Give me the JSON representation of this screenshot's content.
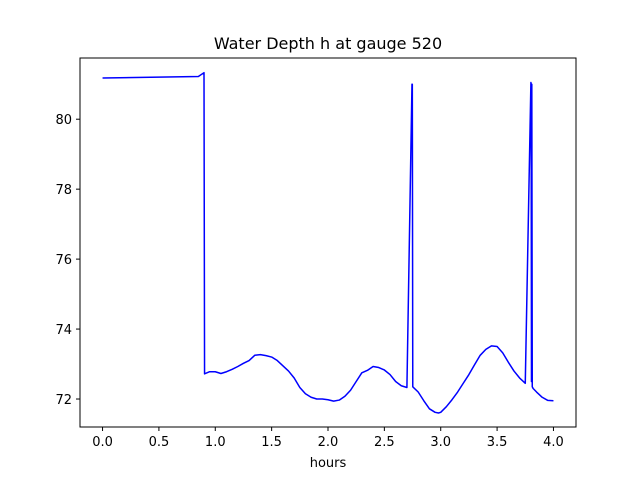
{
  "chart_data": {
    "type": "line",
    "title": "Water Depth h at gauge 520",
    "xlabel": "hours",
    "ylabel": "",
    "xlim": [
      -0.2,
      4.2
    ],
    "ylim": [
      71.2,
      81.75
    ],
    "x_ticks": [
      0.0,
      0.5,
      1.0,
      1.5,
      2.0,
      2.5,
      3.0,
      3.5,
      4.0
    ],
    "x_tick_labels": [
      "0.0",
      "0.5",
      "1.0",
      "1.5",
      "2.0",
      "2.5",
      "3.0",
      "3.5",
      "4.0"
    ],
    "y_ticks": [
      72,
      74,
      76,
      78,
      80
    ],
    "y_tick_labels": [
      "72",
      "74",
      "76",
      "78",
      "80"
    ],
    "grid": false,
    "line_color": "#0000ff",
    "series": [
      {
        "x": [
          0.0,
          0.85,
          0.9,
          0.905,
          0.95,
          1.0,
          1.05,
          1.1,
          1.15,
          1.2,
          1.25,
          1.3,
          1.35,
          1.4,
          1.45,
          1.5,
          1.55,
          1.6,
          1.65,
          1.7,
          1.75,
          1.8,
          1.85,
          1.9,
          1.95,
          2.0,
          2.05,
          2.1,
          2.15,
          2.2,
          2.25,
          2.3,
          2.35,
          2.4,
          2.45,
          2.5,
          2.55,
          2.6,
          2.65,
          2.7,
          2.745,
          2.748,
          2.752,
          2.8,
          2.85,
          2.9,
          2.95,
          2.98,
          3.0,
          3.05,
          3.1,
          3.15,
          3.2,
          3.25,
          3.3,
          3.35,
          3.4,
          3.45,
          3.5,
          3.55,
          3.6,
          3.65,
          3.7,
          3.75,
          3.8,
          3.802,
          3.805,
          3.808,
          3.812,
          3.82,
          3.85,
          3.9,
          3.95,
          4.0
        ],
        "y": [
          81.18,
          81.22,
          81.33,
          72.72,
          72.78,
          72.78,
          72.73,
          72.78,
          72.85,
          72.93,
          73.02,
          73.1,
          73.25,
          73.27,
          73.24,
          73.2,
          73.1,
          72.95,
          72.8,
          72.6,
          72.33,
          72.15,
          72.05,
          72.0,
          72.0,
          71.98,
          71.94,
          71.97,
          72.08,
          72.25,
          72.5,
          72.75,
          72.82,
          72.93,
          72.9,
          72.83,
          72.7,
          72.5,
          72.38,
          72.33,
          81.0,
          81.0,
          72.35,
          72.2,
          71.95,
          71.72,
          71.62,
          71.6,
          71.62,
          71.78,
          71.98,
          72.2,
          72.45,
          72.7,
          72.98,
          73.25,
          73.42,
          73.52,
          73.5,
          73.32,
          73.05,
          72.8,
          72.6,
          72.45,
          81.05,
          81.0,
          72.5,
          81.0,
          72.35,
          72.3,
          72.2,
          72.05,
          71.96,
          71.95
        ]
      }
    ]
  }
}
